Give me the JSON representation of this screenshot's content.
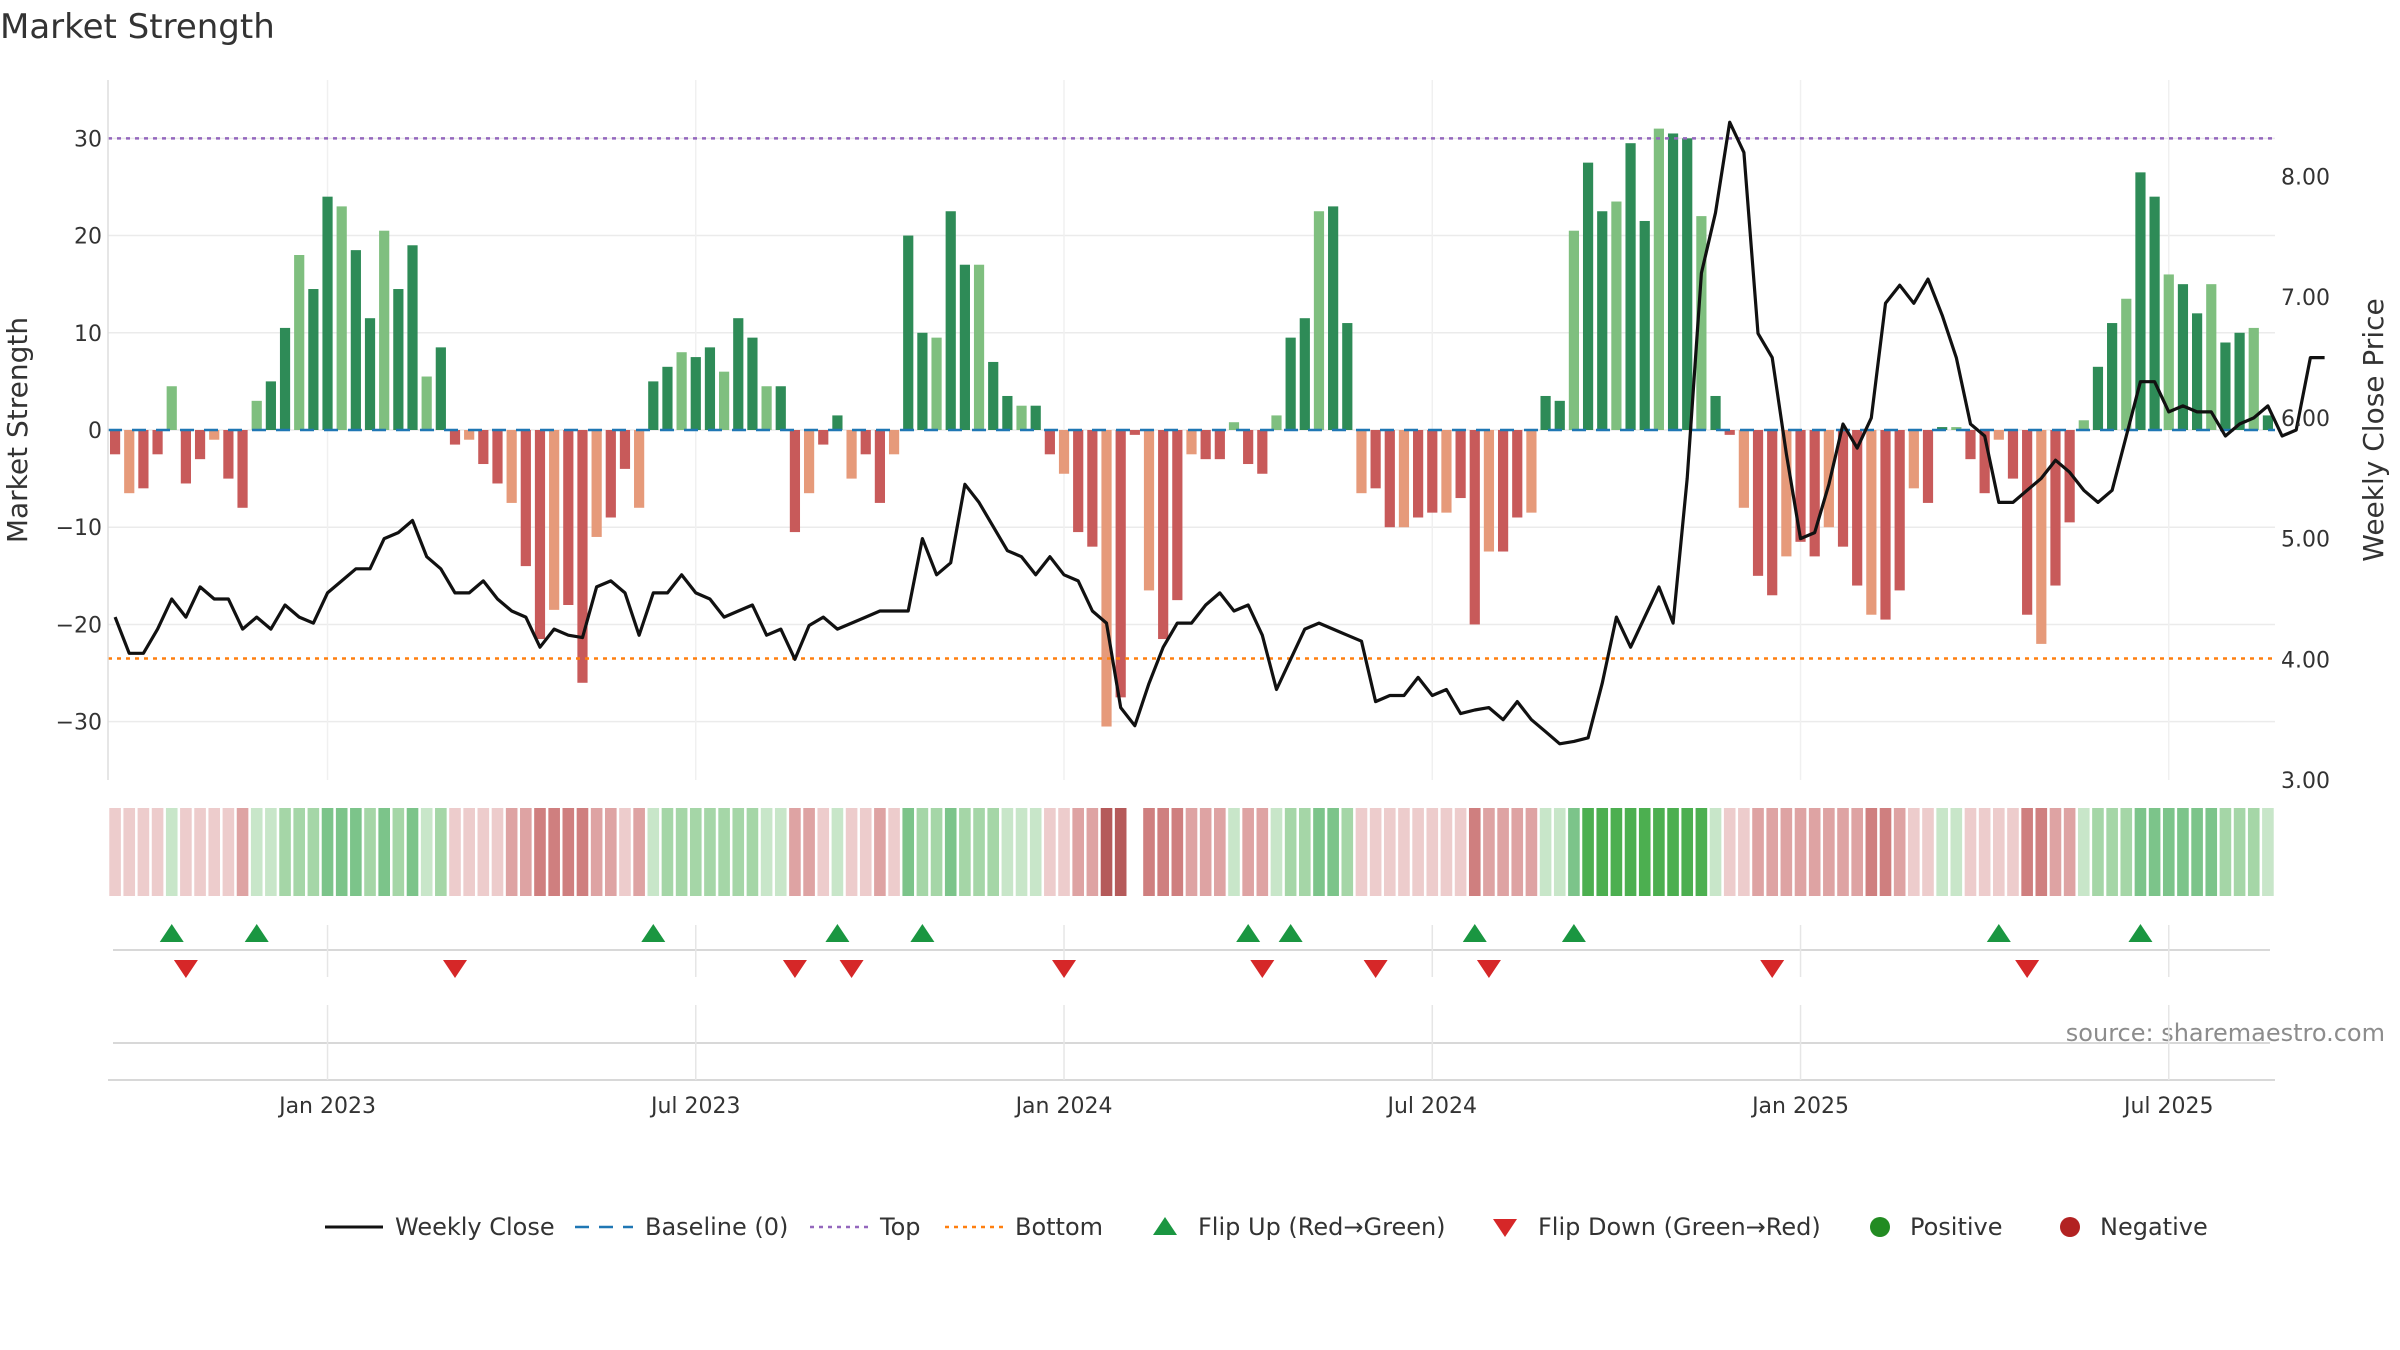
{
  "chart_data": {
    "type": "bar",
    "title": "Market Strength",
    "ylabel": "Market Strength",
    "y2label": "Weekly Close Price",
    "ylim": [
      -36,
      36
    ],
    "y2lim": [
      3.0,
      8.8
    ],
    "yticks": [
      30,
      20,
      10,
      0,
      -10,
      -20,
      -30
    ],
    "yticklabels": [
      "30",
      "20",
      "10",
      "0",
      "−10",
      "−20",
      "−30"
    ],
    "y2ticks": [
      8.0,
      7.0,
      6.0,
      5.0,
      4.0,
      3.0
    ],
    "y2ticklabels": [
      "8.00",
      "7.00",
      "6.00",
      "5.00",
      "4.00",
      "3.00"
    ],
    "xticklabels": [
      "Jan 2023",
      "Jul 2023",
      "Jan 2024",
      "Jul 2024",
      "Jan 2025",
      "Jul 2025"
    ],
    "xtick_weeks": [
      15,
      41,
      67,
      93,
      119,
      145
    ],
    "top_threshold": 30,
    "bottom_threshold": -23.5,
    "source": "source: sharemaestro.com",
    "colors": {
      "positive_strong": "#2e8b57",
      "positive_light": "#7fbf7f",
      "negative_strong": "#c85a5a",
      "negative_light": "#e69a7a",
      "close_line": "#111111",
      "baseline": "#1f77b4",
      "top": "#9467bd",
      "bottom": "#ff7f0e",
      "flip_up": "#1a9641",
      "flip_down": "#d62728",
      "positive_marker": "#228b22",
      "negative_marker": "#b22222"
    },
    "strength": [
      -2.5,
      -6.5,
      -6,
      -2.5,
      4.5,
      -5.5,
      -3,
      -1,
      -5,
      -8,
      3,
      5,
      10.5,
      18,
      14.5,
      24,
      23,
      18.5,
      11.5,
      20.5,
      14.5,
      19,
      5.5,
      8.5,
      -1.5,
      -1,
      -3.5,
      -5.5,
      -7.5,
      -14,
      -21.5,
      -18.5,
      -18,
      -26,
      -11,
      -9,
      -4,
      -8,
      5,
      6.5,
      8,
      7.5,
      8.5,
      6,
      11.5,
      9.5,
      4.5,
      4.5,
      -10.5,
      -6.5,
      -1.5,
      1.5,
      -5,
      -2.5,
      -7.5,
      -2.5,
      20,
      10,
      9.5,
      22.5,
      17,
      17,
      7,
      3.5,
      2.5,
      2.5,
      -2.5,
      -4.5,
      -10.5,
      -12,
      -30.5,
      -27.5,
      -0.5,
      -16.5,
      -21.5,
      -17.5,
      -2.5,
      -3,
      -3,
      0.8,
      -3.5,
      -4.5,
      1.5,
      9.5,
      11.5,
      22.5,
      23,
      11,
      -6.5,
      -6,
      -10,
      -10,
      -9,
      -8.5,
      -8.5,
      -7,
      -20,
      -12.5,
      -12.5,
      -9,
      -8.5,
      3.5,
      3,
      20.5,
      27.5,
      22.5,
      23.5,
      29.5,
      21.5,
      31,
      30.5,
      30,
      22,
      3.5,
      -0.5,
      -8,
      -15,
      -17,
      -13,
      -11.5,
      -13,
      -10,
      -12,
      -16,
      -19,
      -19.5,
      -16.5,
      -6,
      -7.5,
      0.3,
      0.3,
      -3,
      -6.5,
      -1,
      -5,
      -19,
      -22,
      -16,
      -9.5,
      1,
      6.5,
      11,
      13.5,
      26.5,
      24,
      16,
      15,
      12,
      15,
      9,
      10,
      10.5,
      1.5
    ],
    "close": [
      4.35,
      4.05,
      4.05,
      4.25,
      4.5,
      4.35,
      4.6,
      4.5,
      4.5,
      4.25,
      4.35,
      4.25,
      4.45,
      4.35,
      4.3,
      4.55,
      4.65,
      4.75,
      4.75,
      5.0,
      5.05,
      5.15,
      4.85,
      4.75,
      4.55,
      4.55,
      4.65,
      4.5,
      4.4,
      4.35,
      4.1,
      4.25,
      4.2,
      4.18,
      4.6,
      4.65,
      4.55,
      4.2,
      4.55,
      4.55,
      4.7,
      4.55,
      4.5,
      4.35,
      4.4,
      4.45,
      4.2,
      4.25,
      4.0,
      4.28,
      4.35,
      4.25,
      4.3,
      4.35,
      4.4,
      4.4,
      4.4,
      5.0,
      4.7,
      4.8,
      5.45,
      5.3,
      5.1,
      4.9,
      4.85,
      4.7,
      4.85,
      4.7,
      4.65,
      4.4,
      4.3,
      3.6,
      3.45,
      3.8,
      4.1,
      4.3,
      4.3,
      4.45,
      4.55,
      4.4,
      4.45,
      4.2,
      3.75,
      4.0,
      4.25,
      4.3,
      4.25,
      4.2,
      4.15,
      3.65,
      3.7,
      3.7,
      3.85,
      3.7,
      3.75,
      3.55,
      3.58,
      3.6,
      3.5,
      3.65,
      3.5,
      3.4,
      3.3,
      3.32,
      3.35,
      3.8,
      4.35,
      4.1,
      4.35,
      4.6,
      4.3,
      5.5,
      7.2,
      7.7,
      8.45,
      8.2,
      6.7,
      6.5,
      5.7,
      5.0,
      5.05,
      5.45,
      5.95,
      5.75,
      6.0,
      6.95,
      7.1,
      6.95,
      7.15,
      6.85,
      6.5,
      5.95,
      5.85,
      5.3,
      5.3,
      5.4,
      5.5,
      5.65,
      5.55,
      5.4,
      5.3,
      5.4,
      5.85,
      6.3,
      6.3,
      6.05,
      6.1,
      6.05,
      6.05,
      5.85,
      5.95,
      6.0,
      6.1,
      5.85,
      5.9,
      6.5,
      6.5
    ],
    "heat_levels": [
      -1,
      -1,
      -1,
      -1,
      1,
      -1,
      -1,
      -1,
      -1,
      -2,
      1,
      1,
      2,
      2,
      2,
      3,
      3,
      3,
      2,
      3,
      2,
      3,
      1,
      2,
      -1,
      -1,
      -1,
      -1,
      -2,
      -2,
      -3,
      -3,
      -3,
      -3,
      -2,
      -2,
      -1,
      -2,
      1,
      2,
      2,
      2,
      2,
      2,
      2,
      2,
      1,
      1,
      -2,
      -2,
      -1,
      1,
      -1,
      -1,
      -2,
      -1,
      3,
      2,
      2,
      3,
      2,
      2,
      2,
      1,
      1,
      1,
      -1,
      -1,
      -2,
      -2,
      -4,
      -4,
      0,
      -3,
      -3,
      -3,
      -2,
      -2,
      -2,
      1,
      -2,
      -2,
      1,
      2,
      2,
      3,
      3,
      2,
      -1,
      -1,
      -1,
      -1,
      -1,
      -1,
      -1,
      -1,
      -3,
      -2,
      -2,
      -2,
      -2,
      1,
      1,
      3,
      4,
      4,
      4,
      4,
      4,
      4,
      4,
      4,
      4,
      1,
      -1,
      -1,
      -2,
      -2,
      -2,
      -2,
      -2,
      -2,
      -2,
      -2,
      -3,
      -3,
      -2,
      -1,
      -1,
      1,
      1,
      -1,
      -1,
      -1,
      -1,
      -3,
      -3,
      -2,
      -2,
      1,
      2,
      2,
      2,
      3,
      3,
      3,
      3,
      3,
      3,
      2,
      2,
      2,
      1
    ],
    "flip_up_weeks": [
      4,
      10,
      38,
      51,
      57,
      80,
      83,
      96,
      103,
      133,
      143
    ],
    "flip_down_weeks": [
      5,
      24,
      48,
      52,
      67,
      81,
      89,
      97,
      117,
      135
    ],
    "legend": [
      {
        "label": "Weekly Close",
        "kind": "line"
      },
      {
        "label": "Baseline (0)",
        "kind": "dash"
      },
      {
        "label": "Top",
        "kind": "dot-purple"
      },
      {
        "label": "Bottom",
        "kind": "dot-orange"
      },
      {
        "label": "Flip Up (Red→Green)",
        "kind": "tri-up"
      },
      {
        "label": "Flip Down (Green→Red)",
        "kind": "tri-down"
      },
      {
        "label": "Positive",
        "kind": "circle-green"
      },
      {
        "label": "Negative",
        "kind": "circle-red"
      }
    ]
  }
}
